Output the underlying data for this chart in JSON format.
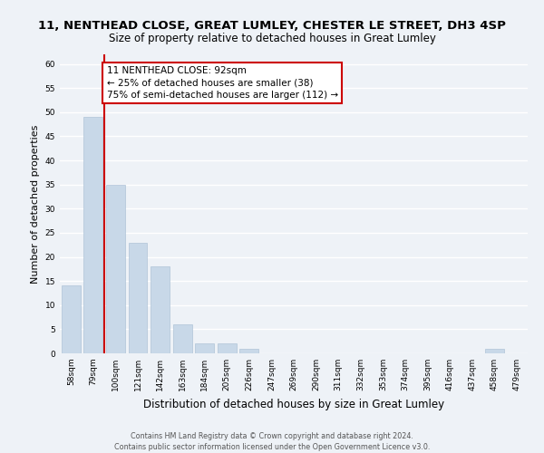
{
  "title": "11, NENTHEAD CLOSE, GREAT LUMLEY, CHESTER LE STREET, DH3 4SP",
  "subtitle": "Size of property relative to detached houses in Great Lumley",
  "xlabel": "Distribution of detached houses by size in Great Lumley",
  "ylabel": "Number of detached properties",
  "bar_labels": [
    "58sqm",
    "79sqm",
    "100sqm",
    "121sqm",
    "142sqm",
    "163sqm",
    "184sqm",
    "205sqm",
    "226sqm",
    "247sqm",
    "269sqm",
    "290sqm",
    "311sqm",
    "332sqm",
    "353sqm",
    "374sqm",
    "395sqm",
    "416sqm",
    "437sqm",
    "458sqm",
    "479sqm"
  ],
  "bar_values": [
    14,
    49,
    35,
    23,
    18,
    6,
    2,
    2,
    1,
    0,
    0,
    0,
    0,
    0,
    0,
    0,
    0,
    0,
    0,
    1,
    0
  ],
  "bar_color": "#c8d8e8",
  "bar_edge_color": "#b0c4d8",
  "highlight_line_color": "#cc0000",
  "highlight_line_index": 1.5,
  "ylim": [
    0,
    62
  ],
  "yticks": [
    0,
    5,
    10,
    15,
    20,
    25,
    30,
    35,
    40,
    45,
    50,
    55,
    60
  ],
  "annotation_box_text": "11 NENTHEAD CLOSE: 92sqm\n← 25% of detached houses are smaller (38)\n75% of semi-detached houses are larger (112) →",
  "footer_line1": "Contains HM Land Registry data © Crown copyright and database right 2024.",
  "footer_line2": "Contains public sector information licensed under the Open Government Licence v3.0.",
  "background_color": "#eef2f7",
  "grid_color": "#ffffff",
  "title_fontsize": 9.5,
  "subtitle_fontsize": 8.5,
  "ylabel_fontsize": 8,
  "xlabel_fontsize": 8.5,
  "tick_fontsize": 6.5,
  "annotation_fontsize": 7.5,
  "footer_fontsize": 5.8
}
